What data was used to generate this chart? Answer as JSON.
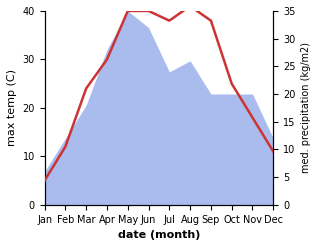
{
  "months": [
    "Jan",
    "Feb",
    "Mar",
    "Apr",
    "May",
    "Jun",
    "Jul",
    "Aug",
    "Sep",
    "Oct",
    "Nov",
    "Dec"
  ],
  "temperature": [
    5,
    12,
    24,
    30,
    40,
    40,
    38,
    41,
    38,
    25,
    18,
    11
  ],
  "precipitation": [
    6,
    12,
    18,
    28,
    35,
    32,
    24,
    26,
    20,
    20,
    20,
    12
  ],
  "temp_color": "#cc3333",
  "precip_color": "#aabbee",
  "ylabel_left": "max temp (C)",
  "ylabel_right": "med. precipitation (kg/m2)",
  "xlabel": "date (month)",
  "ylim_left": [
    0,
    40
  ],
  "ylim_right": [
    0,
    35
  ],
  "yticks_left": [
    0,
    10,
    20,
    30,
    40
  ],
  "yticks_right": [
    0,
    5,
    10,
    15,
    20,
    25,
    30,
    35
  ],
  "background_color": "#ffffff"
}
